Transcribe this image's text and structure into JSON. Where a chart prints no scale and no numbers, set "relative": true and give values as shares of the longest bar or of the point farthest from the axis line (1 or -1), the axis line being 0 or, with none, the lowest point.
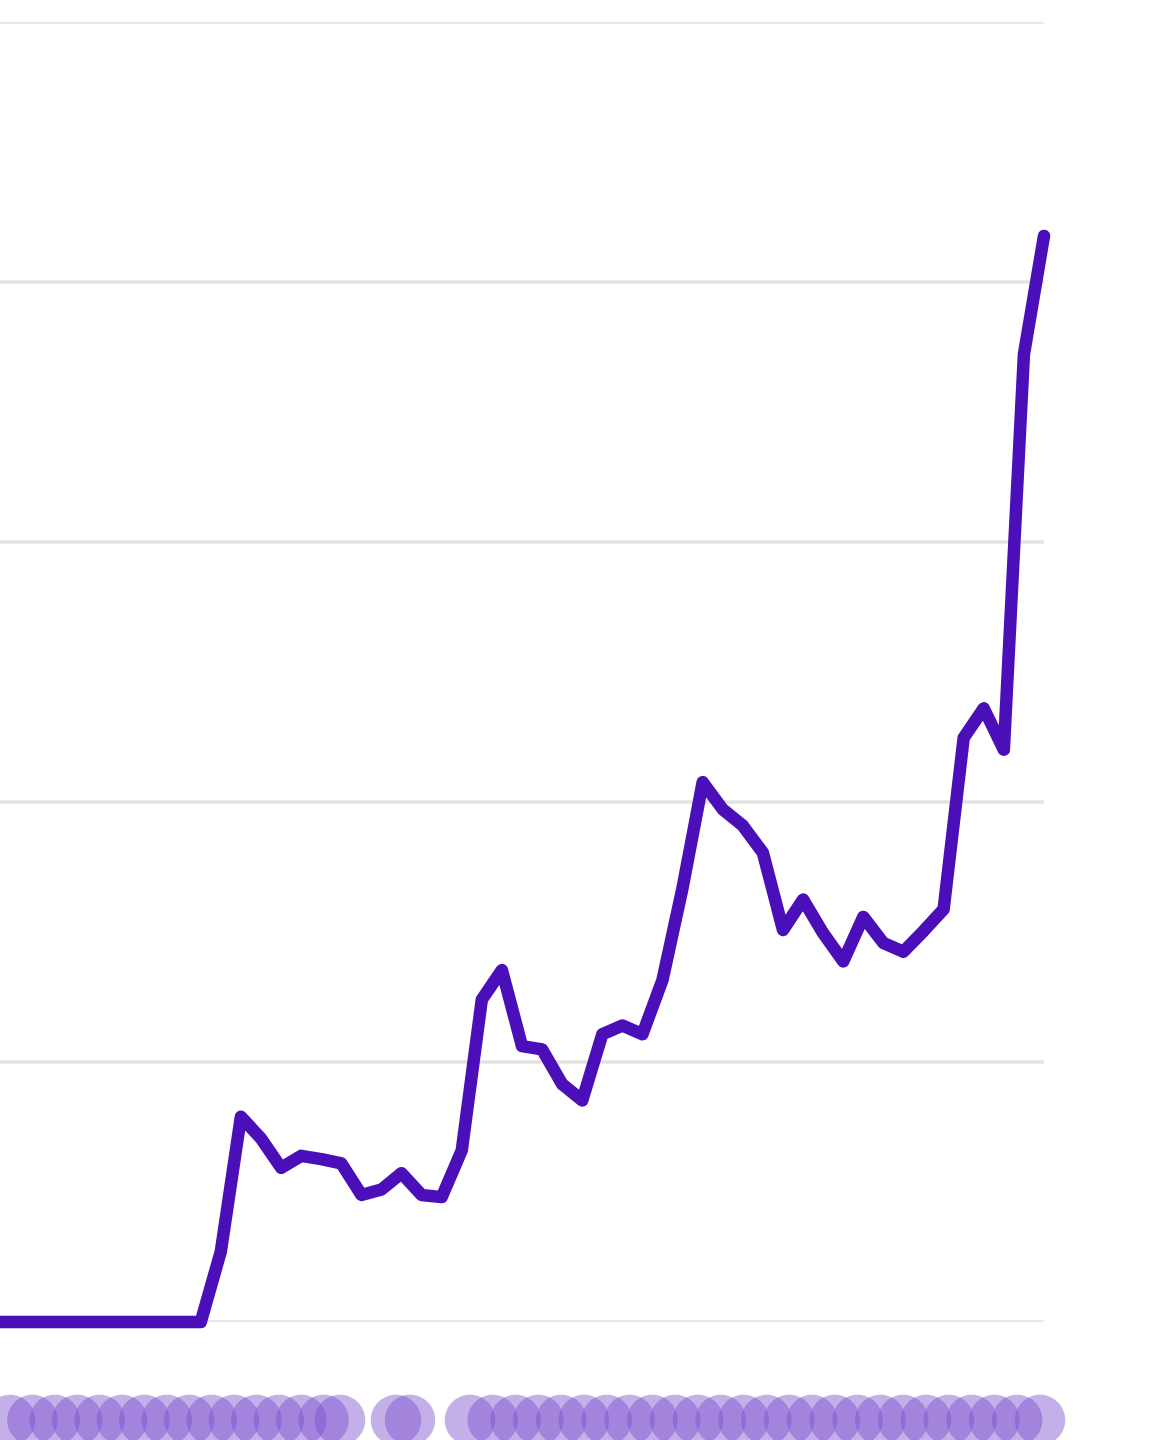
{
  "chart_data": {
    "type": "line",
    "relative": true,
    "grid": "y",
    "legend": false,
    "categories": [
      null,
      null,
      null,
      null,
      null,
      null,
      null,
      null,
      null,
      null,
      null,
      null,
      null,
      null,
      null,
      null,
      null,
      null,
      null,
      null,
      null,
      null,
      null,
      null,
      null,
      null,
      null,
      null,
      null,
      null,
      null,
      null,
      null,
      null,
      null,
      null,
      null,
      null,
      null,
      null,
      null,
      null,
      null,
      null,
      null,
      null,
      null,
      null,
      null,
      null,
      null,
      null,
      null
    ],
    "series": [
      {
        "color": "#4a0fb8",
        "values": [
          0,
          0,
          0,
          0,
          0,
          0,
          0,
          0,
          0,
          0,
          0,
          0.065,
          0.189,
          0.169,
          0.142,
          0.153,
          0.15,
          0.146,
          0.117,
          0.122,
          0.137,
          0.117,
          0.115,
          0.158,
          0.297,
          0.324,
          0.254,
          0.251,
          0.219,
          0.204,
          0.265,
          0.273,
          0.265,
          0.315,
          0.4,
          0.497,
          0.472,
          0.457,
          0.432,
          0.361,
          0.389,
          0.358,
          0.332,
          0.373,
          0.349,
          0.341,
          0.36,
          0.38,
          0.538,
          0.565,
          0.527,
          0.891,
          1.0
        ]
      }
    ]
  }
}
